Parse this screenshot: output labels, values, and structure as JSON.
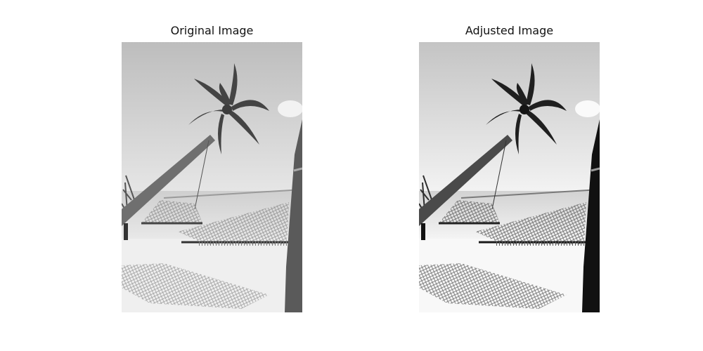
{
  "figure": {
    "panels": [
      {
        "title": "Original Image",
        "variant": "original"
      },
      {
        "title": "Adjusted Image",
        "variant": "adjusted"
      }
    ]
  },
  "colors": {
    "background": "#ffffff",
    "title_text": "#111111"
  }
}
